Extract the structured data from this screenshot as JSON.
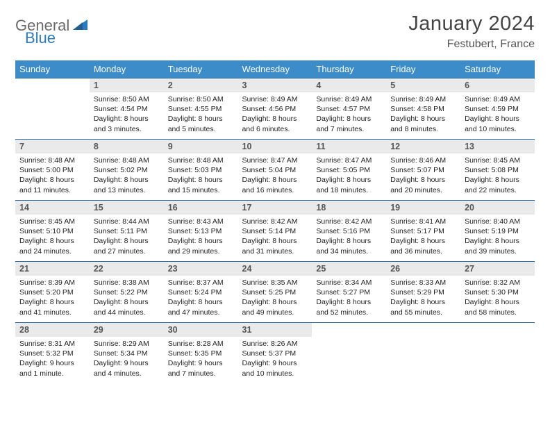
{
  "logo": {
    "general": "General",
    "blue": "Blue"
  },
  "title": "January 2024",
  "location": "Festubert, France",
  "colors": {
    "header_bg": "#3b8cc9",
    "header_text": "#ffffff",
    "daynum_bg": "#eaeaea",
    "row_border": "#2a6a9e",
    "logo_gray": "#6b6b6b",
    "logo_blue": "#2a7bbf"
  },
  "weekdays": [
    "Sunday",
    "Monday",
    "Tuesday",
    "Wednesday",
    "Thursday",
    "Friday",
    "Saturday"
  ],
  "start_offset": 1,
  "days": [
    {
      "n": 1,
      "sr": "8:50 AM",
      "ss": "4:54 PM",
      "dl": "8 hours and 3 minutes."
    },
    {
      "n": 2,
      "sr": "8:50 AM",
      "ss": "4:55 PM",
      "dl": "8 hours and 5 minutes."
    },
    {
      "n": 3,
      "sr": "8:49 AM",
      "ss": "4:56 PM",
      "dl": "8 hours and 6 minutes."
    },
    {
      "n": 4,
      "sr": "8:49 AM",
      "ss": "4:57 PM",
      "dl": "8 hours and 7 minutes."
    },
    {
      "n": 5,
      "sr": "8:49 AM",
      "ss": "4:58 PM",
      "dl": "8 hours and 8 minutes."
    },
    {
      "n": 6,
      "sr": "8:49 AM",
      "ss": "4:59 PM",
      "dl": "8 hours and 10 minutes."
    },
    {
      "n": 7,
      "sr": "8:48 AM",
      "ss": "5:00 PM",
      "dl": "8 hours and 11 minutes."
    },
    {
      "n": 8,
      "sr": "8:48 AM",
      "ss": "5:02 PM",
      "dl": "8 hours and 13 minutes."
    },
    {
      "n": 9,
      "sr": "8:48 AM",
      "ss": "5:03 PM",
      "dl": "8 hours and 15 minutes."
    },
    {
      "n": 10,
      "sr": "8:47 AM",
      "ss": "5:04 PM",
      "dl": "8 hours and 16 minutes."
    },
    {
      "n": 11,
      "sr": "8:47 AM",
      "ss": "5:05 PM",
      "dl": "8 hours and 18 minutes."
    },
    {
      "n": 12,
      "sr": "8:46 AM",
      "ss": "5:07 PM",
      "dl": "8 hours and 20 minutes."
    },
    {
      "n": 13,
      "sr": "8:45 AM",
      "ss": "5:08 PM",
      "dl": "8 hours and 22 minutes."
    },
    {
      "n": 14,
      "sr": "8:45 AM",
      "ss": "5:10 PM",
      "dl": "8 hours and 24 minutes."
    },
    {
      "n": 15,
      "sr": "8:44 AM",
      "ss": "5:11 PM",
      "dl": "8 hours and 27 minutes."
    },
    {
      "n": 16,
      "sr": "8:43 AM",
      "ss": "5:13 PM",
      "dl": "8 hours and 29 minutes."
    },
    {
      "n": 17,
      "sr": "8:42 AM",
      "ss": "5:14 PM",
      "dl": "8 hours and 31 minutes."
    },
    {
      "n": 18,
      "sr": "8:42 AM",
      "ss": "5:16 PM",
      "dl": "8 hours and 34 minutes."
    },
    {
      "n": 19,
      "sr": "8:41 AM",
      "ss": "5:17 PM",
      "dl": "8 hours and 36 minutes."
    },
    {
      "n": 20,
      "sr": "8:40 AM",
      "ss": "5:19 PM",
      "dl": "8 hours and 39 minutes."
    },
    {
      "n": 21,
      "sr": "8:39 AM",
      "ss": "5:20 PM",
      "dl": "8 hours and 41 minutes."
    },
    {
      "n": 22,
      "sr": "8:38 AM",
      "ss": "5:22 PM",
      "dl": "8 hours and 44 minutes."
    },
    {
      "n": 23,
      "sr": "8:37 AM",
      "ss": "5:24 PM",
      "dl": "8 hours and 47 minutes."
    },
    {
      "n": 24,
      "sr": "8:35 AM",
      "ss": "5:25 PM",
      "dl": "8 hours and 49 minutes."
    },
    {
      "n": 25,
      "sr": "8:34 AM",
      "ss": "5:27 PM",
      "dl": "8 hours and 52 minutes."
    },
    {
      "n": 26,
      "sr": "8:33 AM",
      "ss": "5:29 PM",
      "dl": "8 hours and 55 minutes."
    },
    {
      "n": 27,
      "sr": "8:32 AM",
      "ss": "5:30 PM",
      "dl": "8 hours and 58 minutes."
    },
    {
      "n": 28,
      "sr": "8:31 AM",
      "ss": "5:32 PM",
      "dl": "9 hours and 1 minute."
    },
    {
      "n": 29,
      "sr": "8:29 AM",
      "ss": "5:34 PM",
      "dl": "9 hours and 4 minutes."
    },
    {
      "n": 30,
      "sr": "8:28 AM",
      "ss": "5:35 PM",
      "dl": "9 hours and 7 minutes."
    },
    {
      "n": 31,
      "sr": "8:26 AM",
      "ss": "5:37 PM",
      "dl": "9 hours and 10 minutes."
    }
  ],
  "labels": {
    "sunrise": "Sunrise:",
    "sunset": "Sunset:",
    "daylight": "Daylight:"
  }
}
